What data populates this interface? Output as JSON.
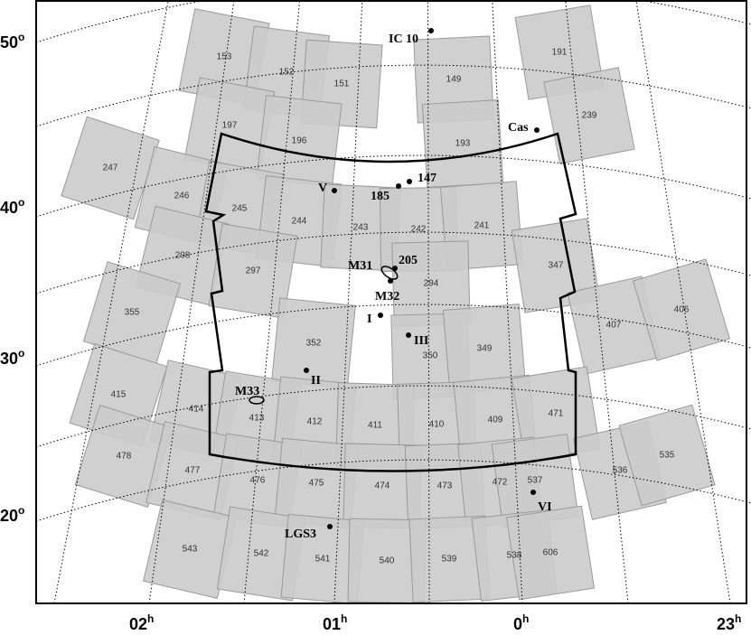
{
  "dec_labels": [
    {
      "text": "50",
      "sup": "o"
    },
    {
      "text": "40",
      "sup": "o"
    },
    {
      "text": "30",
      "sup": "o"
    },
    {
      "text": "20",
      "sup": "o"
    }
  ],
  "ra_labels": [
    {
      "text": "02",
      "sup": "h"
    },
    {
      "text": "01",
      "sup": "h"
    },
    {
      "text": "0",
      "sup": "h"
    },
    {
      "text": "23",
      "sup": "h"
    }
  ],
  "fields": [
    "153",
    "152",
    "151",
    "197",
    "196",
    "149",
    "191",
    "239",
    "193",
    "247",
    "246",
    "245",
    "244",
    "243",
    "242",
    "241",
    "298",
    "297",
    "294",
    "347",
    "355",
    "407",
    "406",
    "352",
    "350",
    "349",
    "415",
    "414",
    "413",
    "412",
    "411",
    "410",
    "409",
    "471",
    "478",
    "477",
    "476",
    "475",
    "474",
    "473",
    "472",
    "537",
    "536",
    "535",
    "543",
    "542",
    "541",
    "540",
    "539",
    "538",
    "606"
  ],
  "objects": [
    "IC 10",
    "Cas",
    "147",
    "185",
    "V",
    "M31",
    "205",
    "M32",
    "I",
    "III",
    "II",
    "M33",
    "VI",
    "LGS3"
  ]
}
